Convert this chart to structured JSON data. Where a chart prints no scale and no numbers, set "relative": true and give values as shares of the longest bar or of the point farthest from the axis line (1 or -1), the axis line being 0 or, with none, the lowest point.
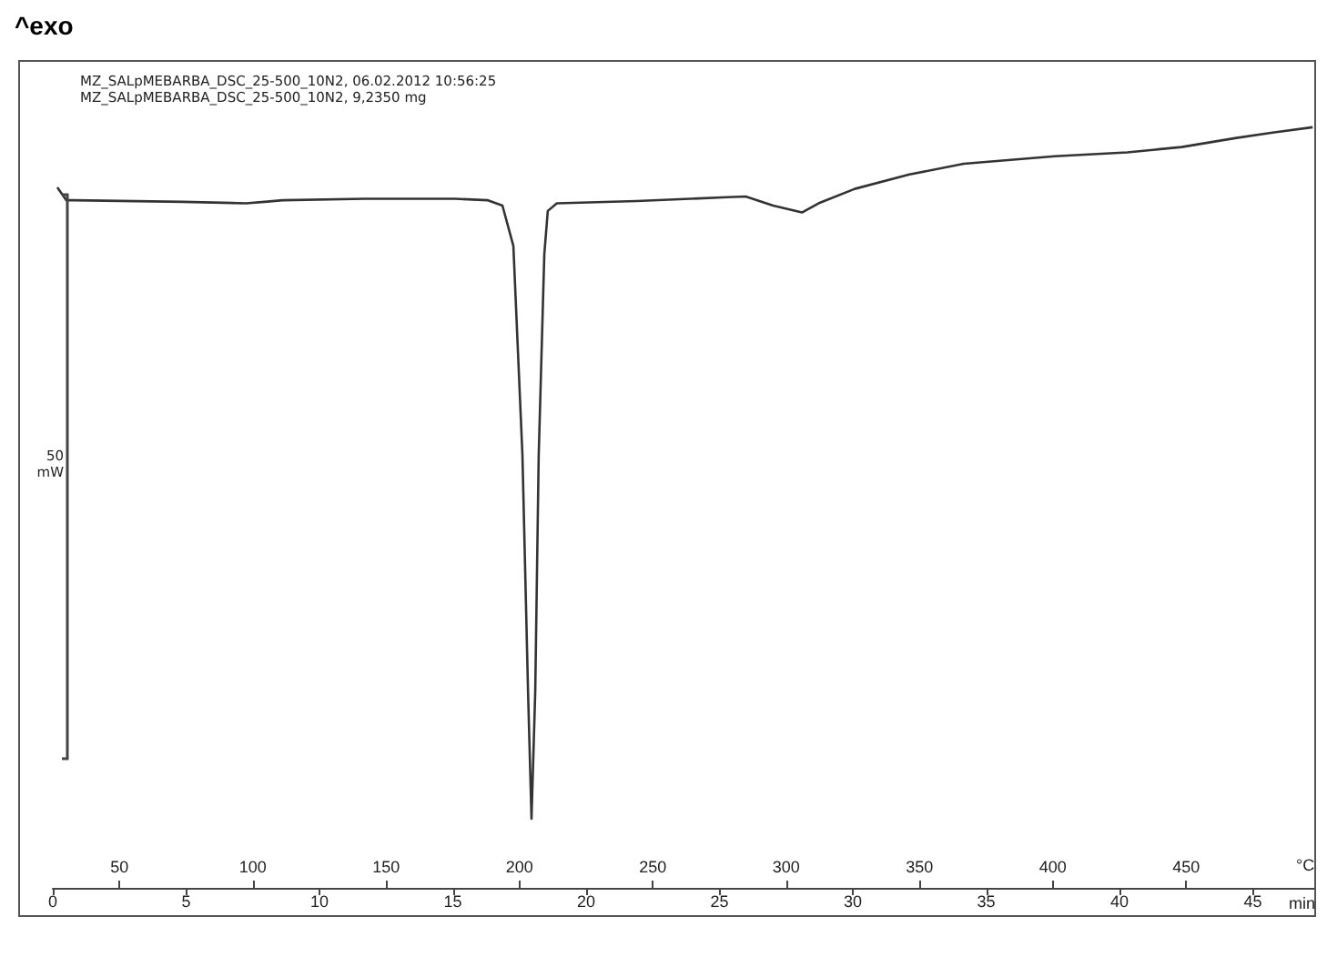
{
  "chart_data": {
    "type": "line",
    "title": "^exo",
    "relative": true,
    "annotations": [
      "MZ_SALpMEBARBA_DSC_25-500_10N2, 06.02.2012 10:56:25",
      "MZ_SALpMEBARBA_DSC_25-500_10N2, 9,2350 mg",
      "50 mW"
    ],
    "xlabel": "°C",
    "x2label": "min",
    "xlim": [
      25,
      498
    ],
    "xticks": [
      50,
      100,
      150,
      200,
      250,
      300,
      350,
      400,
      450
    ],
    "x2lim": [
      0,
      47.3
    ],
    "x2ticks": [
      0,
      5,
      10,
      15,
      20,
      25,
      30,
      35,
      40,
      45
    ],
    "x": [
      26.7,
      30.1,
      32.8,
      73.7,
      97.5,
      104.4,
      111.2,
      141.9,
      175.9,
      188.2,
      193.6,
      197.7,
      201.1,
      203.2,
      204.5,
      205.9,
      207.2,
      209.3,
      210.6,
      214.0,
      244.0,
      278.0,
      284.8,
      295.1,
      305.9,
      312.1,
      325.7,
      346.2,
      366.6,
      400.7,
      427.9,
      448.3,
      468.8,
      482.4,
      497.4
    ],
    "series": [
      {
        "color": "#333333",
        "values": [
          0.921,
          0.904,
          0.904,
          0.902,
          0.9,
          0.902,
          0.904,
          0.906,
          0.906,
          0.904,
          0.897,
          0.844,
          0.569,
          0.258,
          0.091,
          0.258,
          0.569,
          0.833,
          0.89,
          0.9,
          0.903,
          0.908,
          0.909,
          0.897,
          0.888,
          0.9,
          0.919,
          0.938,
          0.952,
          0.962,
          0.967,
          0.974,
          0.986,
          0.993,
          1
        ]
      }
    ],
    "grid": false
  }
}
